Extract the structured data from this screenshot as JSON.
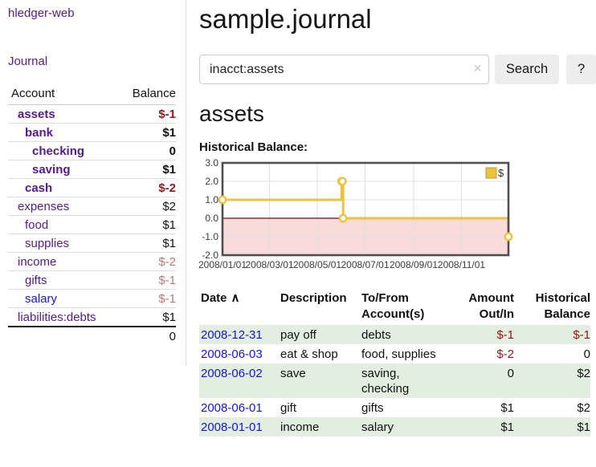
{
  "colors": {
    "brand_purple": "#551A8B",
    "link_blue": "#1515D6",
    "negative_dark_red": "#951717",
    "negative_muted_red": "#BD7877",
    "table_stripe_green": "#E2EFE0",
    "chart_gold": "#EDC240",
    "chart_negative_fill": "#F9DBDB",
    "chart_zero_line": "#8B0000",
    "button_gray": "#EDEDED"
  },
  "sidebar": {
    "brand": "hledger-web",
    "journal_link": "Journal",
    "accounts": {
      "header_account": "Account",
      "header_balance": "Balance",
      "rows": [
        {
          "name": "assets",
          "balance": "$-1"
        },
        {
          "name": "bank",
          "balance": "$1"
        },
        {
          "name": "checking",
          "balance": "0"
        },
        {
          "name": "saving",
          "balance": "$1"
        },
        {
          "name": "cash",
          "balance": "$-2"
        },
        {
          "name": "expenses",
          "balance": "$2"
        },
        {
          "name": "food",
          "balance": "$1"
        },
        {
          "name": "supplies",
          "balance": "$1"
        },
        {
          "name": "income",
          "balance": "$-2"
        },
        {
          "name": "gifts",
          "balance": "$-1"
        },
        {
          "name": "salary",
          "balance": "$-1"
        },
        {
          "name": "liabilities:debts",
          "balance": "$1"
        }
      ],
      "total": "0"
    }
  },
  "main": {
    "title": "sample.journal",
    "search": {
      "value": "inacct:assets",
      "clear_icon": "×",
      "search_button": "Search",
      "help_button": "?"
    },
    "account_heading": "assets",
    "chart_title": "Historical Balance:"
  },
  "chart_data": {
    "type": "line",
    "step": true,
    "title": "Historical Balance",
    "series": [
      {
        "name": "$",
        "color": "#EDC240",
        "points": [
          [
            "2008-01-01",
            1
          ],
          [
            "2008-06-01",
            2
          ],
          [
            "2008-06-02",
            2
          ],
          [
            "2008-06-03",
            0
          ],
          [
            "2008-12-31",
            -1
          ]
        ]
      }
    ],
    "x_range": [
      "2008-01-01",
      "2008-12-31"
    ],
    "x_tick_labels": [
      "2008/01/01",
      "2008/03/01",
      "2008/05/01",
      "2008/07/01",
      "2008/09/01",
      "2008/11/01"
    ],
    "y_tick_labels": [
      "3.0",
      "2.0",
      "1.0",
      "0.0",
      "-1.0",
      "-2.0"
    ],
    "ylim": [
      -2,
      3
    ],
    "grid": true,
    "legend": {
      "label": "$",
      "position": "top-right"
    }
  },
  "register": {
    "headers": {
      "date": "Date",
      "sort_icon": "∧",
      "description": "Description",
      "accounts": "To/From Account(s)",
      "amount": "Amount Out/In",
      "balance": "Historical Balance"
    },
    "rows": [
      {
        "date": "2008-12-31",
        "description": "pay off",
        "accounts": "debts",
        "amount": "$-1",
        "balance": "$-1"
      },
      {
        "date": "2008-06-03",
        "description": "eat & shop",
        "accounts": "food, supplies",
        "amount": "$-2",
        "balance": "0"
      },
      {
        "date": "2008-06-02",
        "description": "save",
        "accounts": "saving, checking",
        "amount": "0",
        "balance": "$2"
      },
      {
        "date": "2008-06-01",
        "description": "gift",
        "accounts": "gifts",
        "amount": "$1",
        "balance": "$2"
      },
      {
        "date": "2008-01-01",
        "description": "income",
        "accounts": "salary",
        "amount": "$1",
        "balance": "$1"
      }
    ]
  }
}
